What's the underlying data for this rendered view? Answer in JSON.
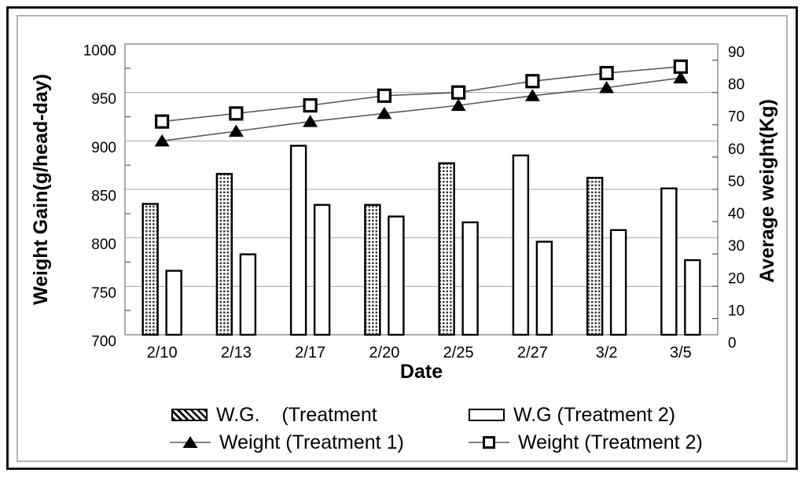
{
  "figure": {
    "background": "#ffffff",
    "outer_border_color": "#141414",
    "inner_border_color": "#b3b3b3"
  },
  "chart_data": {
    "type": "bar",
    "subtype": "grouped bars with two overlay line series (dual axis)",
    "categories": [
      "2/10",
      "2/13",
      "2/17",
      "2/20",
      "2/25",
      "2/27",
      "3/2",
      "3/5"
    ],
    "xlabel": "Date",
    "left_axis": {
      "label": "Weight Gain(g/head-day)",
      "min": 700,
      "max": 1000,
      "tick_step": 50,
      "minor_tick_step": 25,
      "ticks": [
        700,
        750,
        800,
        850,
        900,
        950,
        1000
      ]
    },
    "right_axis": {
      "label": "Average weight(Kg)",
      "min": 0,
      "max": 90,
      "tick_step": 10,
      "minor_tick_step": 5,
      "ticks": [
        0,
        10,
        20,
        30,
        40,
        50,
        60,
        70,
        80,
        90
      ]
    },
    "grid": {
      "horizontal": true,
      "color": "#a6a6a6"
    },
    "series": [
      {
        "name": "W.G. (Treatment 1)",
        "type": "bar",
        "axis": "left",
        "values": [
          835,
          866,
          895,
          834,
          877,
          885,
          862,
          851
        ],
        "fill_patterns": [
          "dotted",
          "dotted",
          "plain",
          "dotted",
          "dotted",
          "plain",
          "dotted",
          "plain"
        ]
      },
      {
        "name": "W.G (Treatment 2)",
        "type": "bar",
        "axis": "left",
        "values": [
          766,
          783,
          834,
          822,
          816,
          796,
          808,
          777
        ],
        "fill_patterns": [
          "plain",
          "plain",
          "plain",
          "plain",
          "plain",
          "plain",
          "plain",
          "plain"
        ]
      },
      {
        "name": "Weight (Treatment 1)",
        "type": "line",
        "axis": "right",
        "marker": "filled-triangle",
        "values": [
          60,
          63,
          66,
          68.5,
          71,
          74,
          76.5,
          79.5
        ]
      },
      {
        "name": "Weight (Treatment 2)",
        "type": "line",
        "axis": "right",
        "marker": "open-square",
        "values": [
          66,
          68.5,
          71,
          74,
          75,
          78.5,
          81,
          83
        ]
      }
    ],
    "legend_position": "bottom"
  },
  "legend": {
    "items": [
      {
        "label": "W.G.    (Treatment",
        "swatch": "hatched-box"
      },
      {
        "label": "W.G (Treatment 2)",
        "swatch": "open-box"
      },
      {
        "label": "Weight (Treatment 1)",
        "swatch": "line-filled-triangle"
      },
      {
        "label": "Weight (Treatment 2)",
        "swatch": "line-open-square"
      }
    ]
  },
  "style": {
    "bar_border_color": "#000000",
    "line_color": "#595959",
    "frame_color": "#808080",
    "grid_color": "#a6a6a6",
    "text_color": "#000000"
  }
}
